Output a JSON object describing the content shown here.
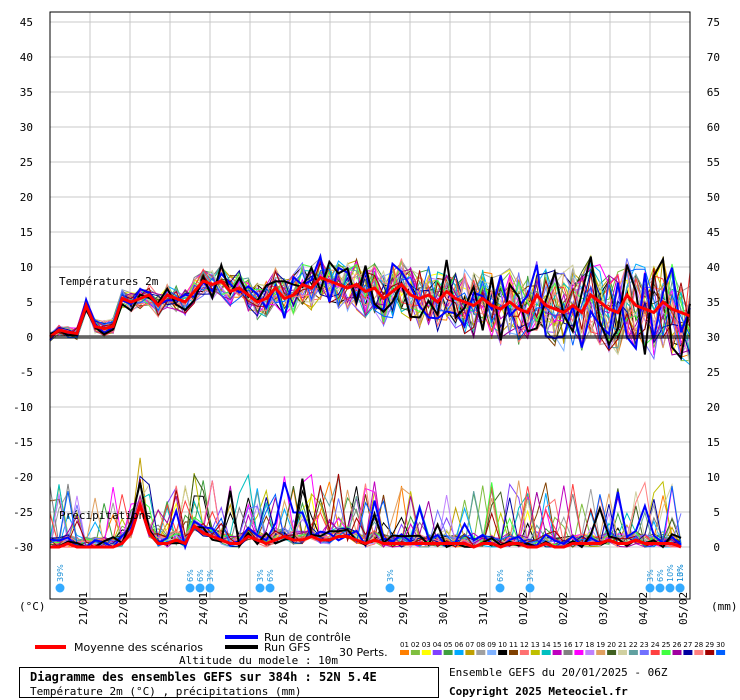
{
  "chart_data": {
    "type": "line",
    "title": "Diagramme des ensembles GEFS sur 384h : 52N 5.4E",
    "subtitle": "Température 2m (°C) , précipitations (mm)",
    "left_axis": {
      "unit_label": "(°C)",
      "ticks": [
        "45",
        "40",
        "35",
        "30",
        "25",
        "20",
        "15",
        "10",
        "5",
        "0",
        "-5",
        "-10",
        "-15",
        "-20",
        "-25",
        "-30"
      ],
      "range": [
        -30,
        45
      ]
    },
    "right_axis": {
      "unit_label": "(mm)",
      "ticks": [
        "75",
        "70",
        "65",
        "60",
        "55",
        "50",
        "45",
        "40",
        "35",
        "30",
        "25",
        "20",
        "15",
        "10",
        "5",
        "0"
      ],
      "range": [
        0,
        75
      ]
    },
    "x_ticks": [
      "21/01",
      "22/01",
      "23/01",
      "24/01",
      "25/01",
      "26/01",
      "27/01",
      "28/01",
      "29/01",
      "30/01",
      "31/01",
      "01/02",
      "02/02",
      "03/02",
      "04/02",
      "05/02"
    ],
    "section_labels": {
      "temp": "Températures 2m",
      "precip": "Précipitations"
    },
    "mean_temperature": {
      "name": "Moyenne des scénarios",
      "color": "#ff0000",
      "values": [
        0,
        1,
        0.7,
        0.5,
        4.5,
        1.5,
        1.2,
        1.5,
        5.5,
        5,
        5.5,
        6,
        4.5,
        6,
        5.5,
        5,
        6.5,
        8,
        7.5,
        8,
        6.5,
        7,
        6,
        5,
        5.5,
        7,
        5.5,
        6,
        7.5,
        7,
        8.5,
        8,
        7.5,
        7,
        7.5,
        6.5,
        7,
        5.5,
        6.5,
        7.5,
        6,
        5.5,
        6,
        5,
        6.5,
        5.5,
        5,
        4.5,
        5.5,
        4.5,
        4,
        5,
        4,
        3.5,
        6,
        4.5,
        4,
        3.5,
        4.5,
        3.5,
        6,
        5,
        4,
        3.5,
        6,
        4.5,
        4,
        3.5,
        5,
        4,
        3.5,
        3
      ]
    },
    "mean_precip": {
      "values": [
        0,
        0,
        0.5,
        0,
        0,
        0,
        0,
        0,
        0.5,
        2,
        6,
        2,
        0.5,
        0.5,
        1,
        0.5,
        3,
        2,
        1.5,
        1,
        0.5,
        0.5,
        1.5,
        1,
        0.5,
        1,
        1.5,
        1,
        1,
        1.5,
        1,
        1,
        1.5,
        1.5,
        1,
        0.5,
        1,
        0.5,
        0.5,
        0.5,
        0.5,
        0.5,
        0.5,
        0.5,
        0.5,
        0.5,
        0.5,
        0,
        0.5,
        0.5,
        0,
        0.5,
        0.5,
        0,
        0,
        0.5,
        0,
        0,
        0.5,
        0.5,
        0.5,
        0.5,
        1,
        0.5,
        0.5,
        1,
        0.5,
        0.5,
        0.5,
        0.5,
        0
      ]
    },
    "control_run": {
      "name": "Run de contrôle",
      "color": "#0000ff"
    },
    "gfs_run": {
      "name": "Run GFS",
      "color": "#000000"
    },
    "perturbations": {
      "label": "30 Perts.",
      "codes": [
        "01",
        "02",
        "03",
        "04",
        "05",
        "06",
        "07",
        "08",
        "09",
        "10",
        "11",
        "12",
        "13",
        "14",
        "15",
        "16",
        "17",
        "18",
        "19",
        "20",
        "21",
        "22",
        "23",
        "24",
        "25",
        "26",
        "27",
        "28",
        "29",
        "30"
      ],
      "colors": [
        "#ff7f00",
        "#7fbf3f",
        "#ffff00",
        "#8040ff",
        "#3f9f3f",
        "#00aaff",
        "#bf9f00",
        "#a0a0a0",
        "#7fb2ff",
        "#000000",
        "#804000",
        "#ff7070",
        "#bfbf00",
        "#00c0c0",
        "#bf00bf",
        "#808080",
        "#ff00ff",
        "#c080ff",
        "#e0a060",
        "#406020",
        "#d0d0a0",
        "#60a0a0",
        "#7070ff",
        "#ff4040",
        "#40ff40",
        "#a000a0",
        "#0000a0",
        "#ff8080",
        "#a00000",
        "#0060ff"
      ]
    },
    "snow_flags": [
      {
        "day": "20/01",
        "pct": "39%"
      },
      {
        "day": "23/01",
        "pct": "6%"
      },
      {
        "day": "23/01",
        "pct": "6%"
      },
      {
        "day": "24/01",
        "pct": "3%"
      },
      {
        "day": "25/01",
        "pct": "3%"
      },
      {
        "day": "25/01",
        "pct": "6%"
      },
      {
        "day": "28/01",
        "pct": "3%"
      },
      {
        "day": "31/01",
        "pct": "6%"
      },
      {
        "day": "01/02",
        "pct": "3%"
      },
      {
        "day": "04/02",
        "pct": "3%"
      },
      {
        "day": "04/02",
        "pct": "6%"
      },
      {
        "day": "04/02",
        "pct": "10%"
      },
      {
        "day": "04/02",
        "pct": "13%"
      },
      {
        "day": "05/02",
        "pct": "10%"
      }
    ],
    "grid": true
  },
  "footer": {
    "altitude": "Altitude du modele : 10m",
    "run": "Ensemble GEFS du 20/01/2025 - 06Z",
    "copyright": "Copyright 2025 Meteociel.fr"
  }
}
